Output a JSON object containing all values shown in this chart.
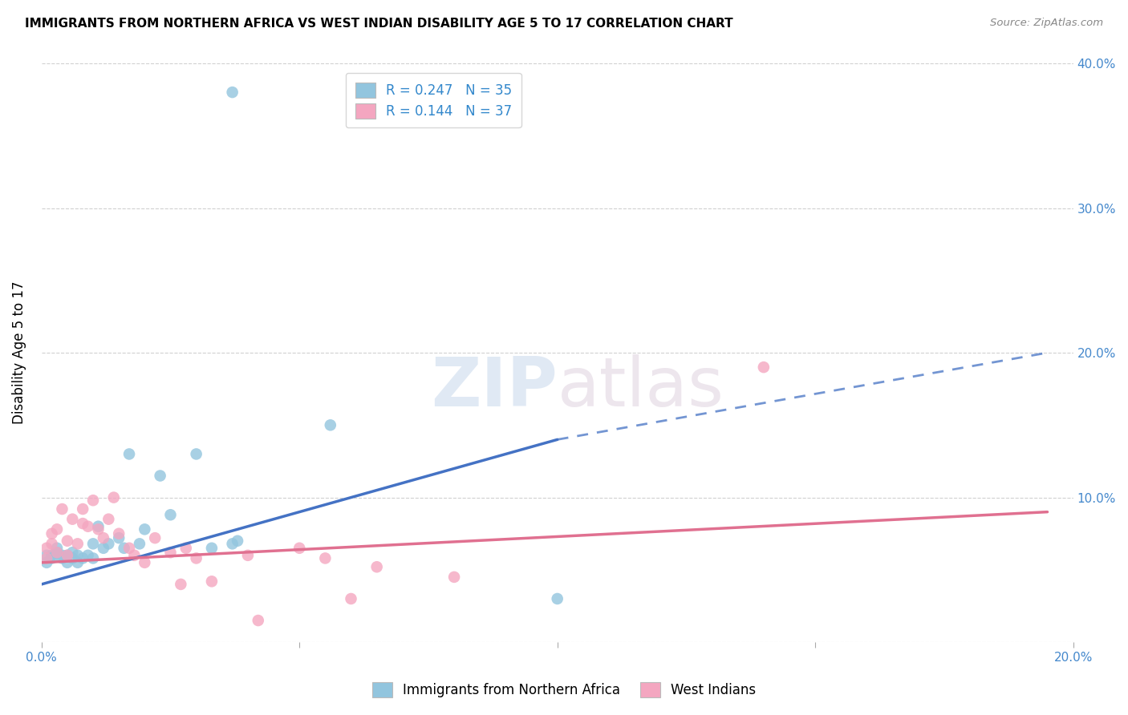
{
  "title": "IMMIGRANTS FROM NORTHERN AFRICA VS WEST INDIAN DISABILITY AGE 5 TO 17 CORRELATION CHART",
  "source": "Source: ZipAtlas.com",
  "ylabel": "Disability Age 5 to 17",
  "xlim": [
    0.0,
    0.2
  ],
  "ylim": [
    0.0,
    0.4
  ],
  "xticks": [
    0.0,
    0.05,
    0.1,
    0.15,
    0.2
  ],
  "xtick_labels": [
    "0.0%",
    "",
    "",
    "",
    "20.0%"
  ],
  "yticks": [
    0.0,
    0.1,
    0.2,
    0.3,
    0.4
  ],
  "ytick_labels_right": [
    "",
    "10.0%",
    "20.0%",
    "30.0%",
    "40.0%"
  ],
  "legend1_label": "R = 0.247   N = 35",
  "legend2_label": "R = 0.144   N = 37",
  "legend_bottom_label1": "Immigrants from Northern Africa",
  "legend_bottom_label2": "West Indians",
  "blue_color": "#92c5de",
  "pink_color": "#f4a6c0",
  "blue_line_color": "#4472c4",
  "pink_line_color": "#e07090",
  "blue_x": [
    0.001,
    0.001,
    0.002,
    0.002,
    0.003,
    0.003,
    0.004,
    0.004,
    0.005,
    0.005,
    0.006,
    0.006,
    0.007,
    0.007,
    0.008,
    0.009,
    0.01,
    0.01,
    0.011,
    0.012,
    0.013,
    0.015,
    0.016,
    0.017,
    0.019,
    0.02,
    0.023,
    0.025,
    0.03,
    0.033,
    0.037,
    0.038,
    0.056,
    0.1,
    0.037
  ],
  "blue_y": [
    0.06,
    0.055,
    0.06,
    0.058,
    0.062,
    0.065,
    0.058,
    0.06,
    0.055,
    0.06,
    0.058,
    0.062,
    0.06,
    0.055,
    0.058,
    0.06,
    0.058,
    0.068,
    0.08,
    0.065,
    0.068,
    0.072,
    0.065,
    0.13,
    0.068,
    0.078,
    0.115,
    0.088,
    0.13,
    0.065,
    0.068,
    0.07,
    0.15,
    0.03,
    0.38
  ],
  "pink_x": [
    0.001,
    0.001,
    0.002,
    0.002,
    0.003,
    0.003,
    0.004,
    0.005,
    0.005,
    0.006,
    0.007,
    0.008,
    0.008,
    0.009,
    0.01,
    0.011,
    0.012,
    0.013,
    0.014,
    0.015,
    0.017,
    0.018,
    0.02,
    0.022,
    0.025,
    0.027,
    0.028,
    0.03,
    0.033,
    0.04,
    0.042,
    0.05,
    0.055,
    0.06,
    0.065,
    0.08,
    0.14
  ],
  "pink_y": [
    0.065,
    0.058,
    0.075,
    0.068,
    0.062,
    0.078,
    0.092,
    0.07,
    0.06,
    0.085,
    0.068,
    0.092,
    0.082,
    0.08,
    0.098,
    0.078,
    0.072,
    0.085,
    0.1,
    0.075,
    0.065,
    0.06,
    0.055,
    0.072,
    0.062,
    0.04,
    0.065,
    0.058,
    0.042,
    0.06,
    0.015,
    0.065,
    0.058,
    0.03,
    0.052,
    0.045,
    0.19
  ],
  "background_color": "#ffffff",
  "grid_color": "#d0d0d0",
  "blue_line_x_solid_end": 0.1,
  "blue_line_x_dash_end": 0.195,
  "blue_line_y_start": 0.04,
  "blue_line_y_solid_end": 0.14,
  "blue_line_y_dash_end": 0.2,
  "pink_line_x_start": 0.0,
  "pink_line_x_end": 0.195,
  "pink_line_y_start": 0.055,
  "pink_line_y_end": 0.09
}
